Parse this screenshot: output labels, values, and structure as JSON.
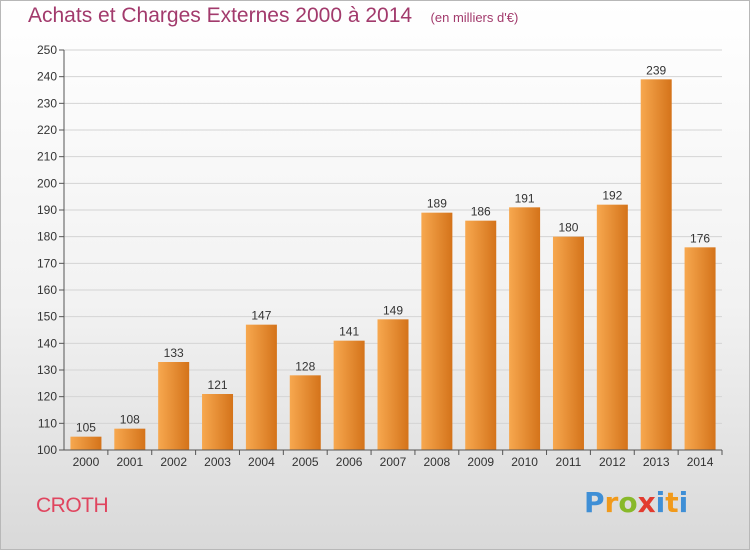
{
  "header": {
    "title": "Achats et Charges Externes 2000 à 2014",
    "unit": "(en milliers d'€)"
  },
  "commune": "CROTH",
  "logo": {
    "letters": [
      "P",
      "r",
      "o",
      "x",
      "i",
      "t",
      "i"
    ],
    "colors": [
      "#3f8fd6",
      "#f19a1b",
      "#88b92a",
      "#e23b2f",
      "#3f8fd6",
      "#f19a1b",
      "#3f8fd6"
    ]
  },
  "colors": {
    "bar_light": "#f7a84f",
    "bar_dark": "#d4731a",
    "title": "#a23a6c",
    "commune": "#e0455f"
  },
  "chart_data": {
    "type": "bar",
    "categories": [
      "2000",
      "2001",
      "2002",
      "2003",
      "2004",
      "2005",
      "2006",
      "2007",
      "2008",
      "2009",
      "2010",
      "2011",
      "2012",
      "2013",
      "2014"
    ],
    "values": [
      105,
      108,
      133,
      121,
      147,
      128,
      141,
      149,
      189,
      186,
      191,
      180,
      192,
      239,
      176
    ],
    "value_labels": [
      "105",
      "108",
      "133",
      "121",
      "147",
      "128",
      "141",
      "149",
      "189",
      "186",
      "191",
      "180",
      "192",
      "239",
      "176"
    ],
    "ylim": [
      100,
      250
    ],
    "yticks": [
      "100",
      "110",
      "120",
      "130",
      "140",
      "150",
      "160",
      "170",
      "180",
      "190",
      "200",
      "210",
      "220",
      "230",
      "240",
      "250"
    ],
    "grid": true,
    "xlabel": "",
    "ylabel": ""
  }
}
